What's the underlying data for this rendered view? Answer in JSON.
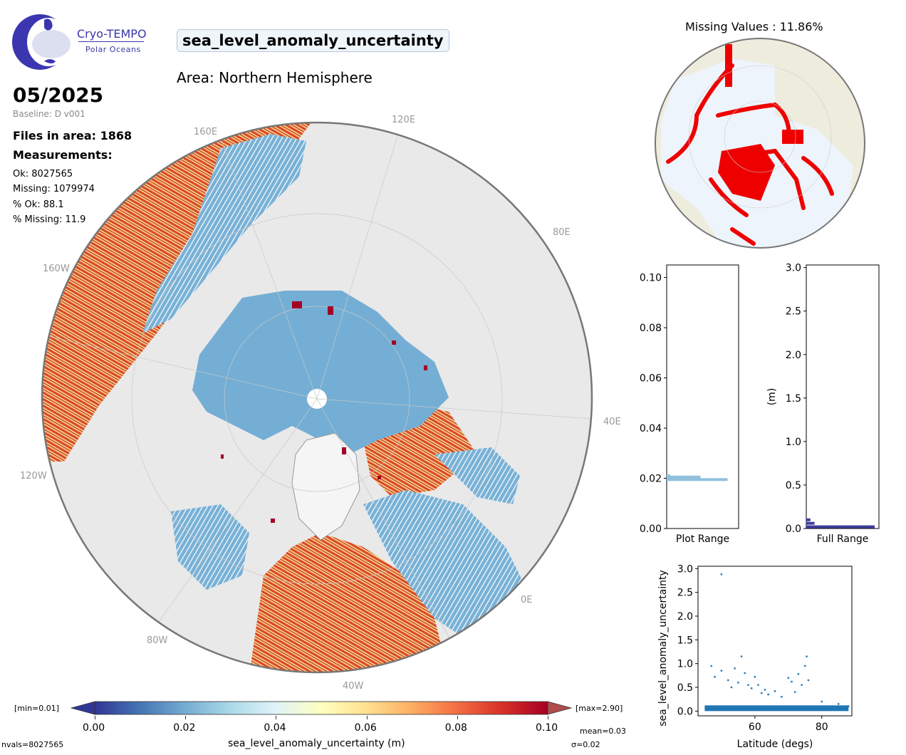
{
  "logo": {
    "name": "Cryo-TEMPO",
    "subtitle": "Polar Oceans"
  },
  "title": "sea_level_anomaly_uncertainty",
  "area": "Area: Northern Hemisphere",
  "date": "05/2025",
  "baseline": "Baseline: D v001",
  "files": "Files in area: 1868",
  "measurements_heading": "Measurements:",
  "stats": {
    "ok": "Ok: 8027565",
    "missing": "Missing: 1079974",
    "pct_ok": "% Ok: 88.1",
    "pct_missing": "% Missing: 11.9"
  },
  "map_lon_labels": [
    "120E",
    "160E",
    "80E",
    "160W",
    "40E",
    "120W",
    "0E",
    "80W",
    "40W"
  ],
  "colorbar": {
    "min_label": "[min=0.01]",
    "max_label": "[max=2.90]",
    "ticks": [
      "0.00",
      "0.02",
      "0.04",
      "0.06",
      "0.08",
      "0.10"
    ],
    "label": "sea_level_anomaly_uncertainty (m)",
    "mean": "mean=0.03",
    "sigma": "σ=0.02",
    "nvals": "nvals=8027565",
    "colors": [
      "#313695",
      "#4575b4",
      "#74add1",
      "#abd9e9",
      "#e0f3f8",
      "#ffffbf",
      "#fee090",
      "#fdae61",
      "#f46d43",
      "#d73027",
      "#a50026"
    ]
  },
  "missing_title": "Missing Values : 11.86%",
  "hist_plot": {
    "ticks": [
      "0.00",
      "0.02",
      "0.04",
      "0.06",
      "0.08",
      "0.10"
    ],
    "xlabel": "Plot Range",
    "color": "#91c0dc"
  },
  "hist_full": {
    "ticks": [
      "0.0",
      "0.5",
      "1.0",
      "1.5",
      "2.0",
      "2.5",
      "3.0"
    ],
    "xlabel": "Full Range",
    "ylabel": "(m)",
    "color": "#3f3f9f"
  },
  "scatter": {
    "yticks": [
      "0.0",
      "0.5",
      "1.0",
      "1.5",
      "2.0",
      "2.5",
      "3.0"
    ],
    "xticks": [
      "60",
      "80"
    ],
    "ylabel": "sea_level_anomaly_uncertainty",
    "xlabel": "Latitude (degs)",
    "color": "#1f77b4"
  },
  "chart_data": [
    {
      "type": "heatmap",
      "title": "sea_level_anomaly_uncertainty",
      "colorbar_label": "sea_level_anomaly_uncertainty (m)",
      "vmin": 0.0,
      "vmax": 0.1,
      "data_min": 0.01,
      "data_max": 2.9,
      "mean": 0.03,
      "std": 0.02,
      "n": 8027565
    },
    {
      "type": "bar",
      "title": "Plot Range",
      "orientation": "horizontal",
      "ylim": [
        0,
        0.105
      ],
      "bins": [
        {
          "y": 0.0205,
          "count": 0.5
        },
        {
          "y": 0.0195,
          "count": 0.9
        },
        {
          "y": 0.021,
          "count": 0.05
        }
      ]
    },
    {
      "type": "bar",
      "title": "Full Range",
      "ylabel": "(m)",
      "orientation": "horizontal",
      "ylim": [
        0,
        3.03
      ],
      "bins": [
        {
          "y": 0.02,
          "count": 1.0
        },
        {
          "y": 0.06,
          "count": 0.12
        },
        {
          "y": 0.1,
          "count": 0.06
        }
      ]
    },
    {
      "type": "scatter",
      "xlabel": "Latitude (degs)",
      "ylabel": "sea_level_anomaly_uncertainty",
      "xlim": [
        43,
        89
      ],
      "ylim": [
        -0.1,
        3.05
      ],
      "points": [
        [
          50,
          2.88
        ],
        [
          47,
          0.95
        ],
        [
          48,
          0.72
        ],
        [
          50,
          0.85
        ],
        [
          52,
          0.65
        ],
        [
          54,
          0.9
        ],
        [
          56,
          1.15
        ],
        [
          57,
          0.8
        ],
        [
          53,
          0.5
        ],
        [
          55,
          0.6
        ],
        [
          58,
          0.55
        ],
        [
          60,
          0.72
        ],
        [
          61,
          0.55
        ],
        [
          59,
          0.48
        ],
        [
          63,
          0.45
        ],
        [
          64,
          0.35
        ],
        [
          66,
          0.42
        ],
        [
          70,
          0.7
        ],
        [
          71,
          0.62
        ],
        [
          73,
          0.78
        ],
        [
          75,
          0.95
        ],
        [
          75.5,
          1.15
        ],
        [
          74,
          0.55
        ],
        [
          76,
          0.65
        ],
        [
          72,
          0.4
        ],
        [
          68,
          0.3
        ],
        [
          62,
          0.38
        ],
        [
          80,
          0.2
        ],
        [
          85,
          0.15
        ],
        [
          88,
          0.1
        ]
      ],
      "band": {
        "lat": [
          45,
          88
        ],
        "y": [
          0.0,
          0.12
        ]
      }
    }
  ]
}
